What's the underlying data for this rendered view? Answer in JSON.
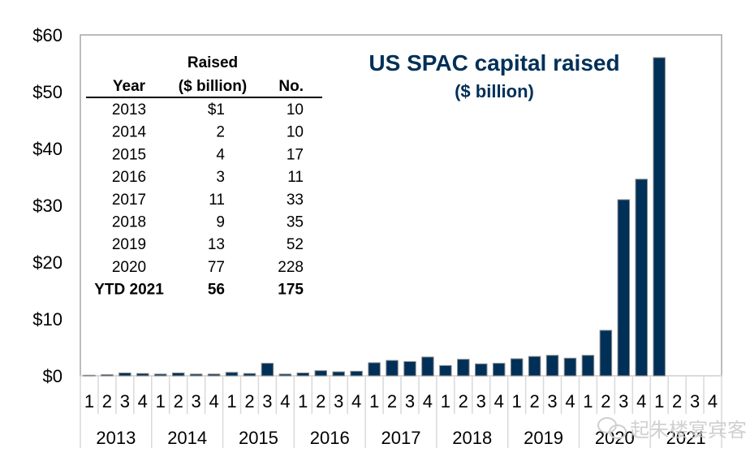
{
  "chart_data": {
    "type": "bar",
    "title": "US SPAC capital raised",
    "subtitle": "($ billion)",
    "xlabel": "",
    "ylabel": "",
    "ylim": [
      0,
      60
    ],
    "yticks": [
      0,
      10,
      20,
      30,
      40,
      50,
      60
    ],
    "ytick_labels": [
      "$0",
      "$10",
      "$20",
      "$30",
      "$40",
      "$50",
      "$60"
    ],
    "grid": false,
    "bar_color": "#003057",
    "years": [
      "2013",
      "2014",
      "2015",
      "2016",
      "2017",
      "2018",
      "2019",
      "2020",
      "2021"
    ],
    "quarters": [
      "1",
      "2",
      "3",
      "4"
    ],
    "categories": [
      "2013 Q1",
      "2013 Q2",
      "2013 Q3",
      "2013 Q4",
      "2014 Q1",
      "2014 Q2",
      "2014 Q3",
      "2014 Q4",
      "2015 Q1",
      "2015 Q2",
      "2015 Q3",
      "2015 Q4",
      "2016 Q1",
      "2016 Q2",
      "2016 Q3",
      "2016 Q4",
      "2017 Q1",
      "2017 Q2",
      "2017 Q3",
      "2017 Q4",
      "2018 Q1",
      "2018 Q2",
      "2018 Q3",
      "2018 Q4",
      "2019 Q1",
      "2019 Q2",
      "2019 Q3",
      "2019 Q4",
      "2020 Q1",
      "2020 Q2",
      "2020 Q3",
      "2020 Q4",
      "2021 Q1",
      "2021 Q2",
      "2021 Q3",
      "2021 Q4"
    ],
    "values": [
      0.1,
      0.2,
      0.5,
      0.4,
      0.3,
      0.5,
      0.3,
      0.3,
      0.6,
      0.4,
      2.2,
      0.3,
      0.5,
      0.9,
      0.7,
      0.8,
      2.3,
      2.7,
      2.5,
      3.3,
      1.8,
      2.9,
      2.1,
      2.2,
      3.0,
      3.4,
      3.6,
      3.1,
      3.6,
      8.0,
      31.0,
      34.6,
      56.0,
      null,
      null,
      null
    ],
    "table": {
      "headers": {
        "year": "Year",
        "raised_top": "Raised",
        "raised": "($ billion)",
        "count": "No."
      },
      "rows": [
        {
          "year": "2013",
          "raised": "$1",
          "count": "10",
          "bold": false
        },
        {
          "year": "2014",
          "raised": "2",
          "count": "10",
          "bold": false
        },
        {
          "year": "2015",
          "raised": "4",
          "count": "17",
          "bold": false
        },
        {
          "year": "2016",
          "raised": "3",
          "count": "11",
          "bold": false
        },
        {
          "year": "2017",
          "raised": "11",
          "count": "33",
          "bold": false
        },
        {
          "year": "2018",
          "raised": "9",
          "count": "35",
          "bold": false
        },
        {
          "year": "2019",
          "raised": "13",
          "count": "52",
          "bold": false
        },
        {
          "year": "2020",
          "raised": "77",
          "count": "228",
          "bold": false
        },
        {
          "year": "YTD 2021",
          "raised": "56",
          "count": "175",
          "bold": true
        }
      ]
    }
  },
  "watermark": {
    "text": "起朱楼宴宾客",
    "icon": "wechat-icon"
  }
}
